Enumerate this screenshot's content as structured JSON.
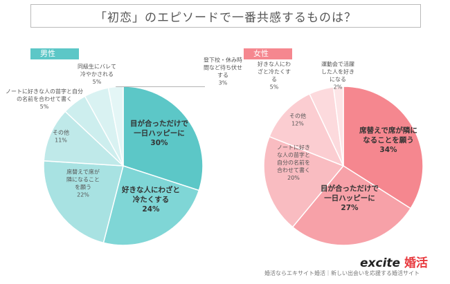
{
  "title": "「初恋」のエピソードで一番共感するものは？",
  "chart_data": [
    {
      "type": "pie",
      "title": "男性",
      "slices": [
        {
          "label": "目が合っただけで一日ハッピーに",
          "value": 30,
          "color": "#5cc7c7"
        },
        {
          "label": "好きな人にわざと冷たくする",
          "value": 24,
          "color": "#7fd6d6"
        },
        {
          "label": "席替えで席が隣になることを願う",
          "value": 22,
          "color": "#a8e2e2"
        },
        {
          "label": "その他",
          "value": 11,
          "color": "#bfe9e9"
        },
        {
          "label": "ノートに好きな人の苗字と自分の名前を合わせて書く",
          "value": 5,
          "color": "#cdeeee"
        },
        {
          "label": "同級生にバレて冷やかされる",
          "value": 5,
          "color": "#d9f2f2"
        },
        {
          "label": "登下校・休み時間など待ち伏せする",
          "value": 3,
          "color": "#e4f6f6"
        }
      ]
    },
    {
      "type": "pie",
      "title": "女性",
      "slices": [
        {
          "label": "席替えで席が隣になることを願う",
          "value": 34,
          "color": "#f5878f"
        },
        {
          "label": "目が合っただけで一日ハッピーに",
          "value": 27,
          "color": "#f7a1a8"
        },
        {
          "label": "ノートに好きな人の苗字と自分の名前を合わせて書く",
          "value": 20,
          "color": "#f9bcc1"
        },
        {
          "label": "その他",
          "value": 12,
          "color": "#fbcdd1"
        },
        {
          "label": "好きな人にわざと冷たくする",
          "value": 5,
          "color": "#fcdadd"
        },
        {
          "label": "運動会で活躍した人を好きになる",
          "value": 2,
          "color": "#fde5e7"
        }
      ]
    }
  ],
  "brand": {
    "logo": "excite",
    "logo_accent": "婚活"
  },
  "footer": "婚活ならエキサイト婚活｜新しい出会いを応援する婚活サイト"
}
